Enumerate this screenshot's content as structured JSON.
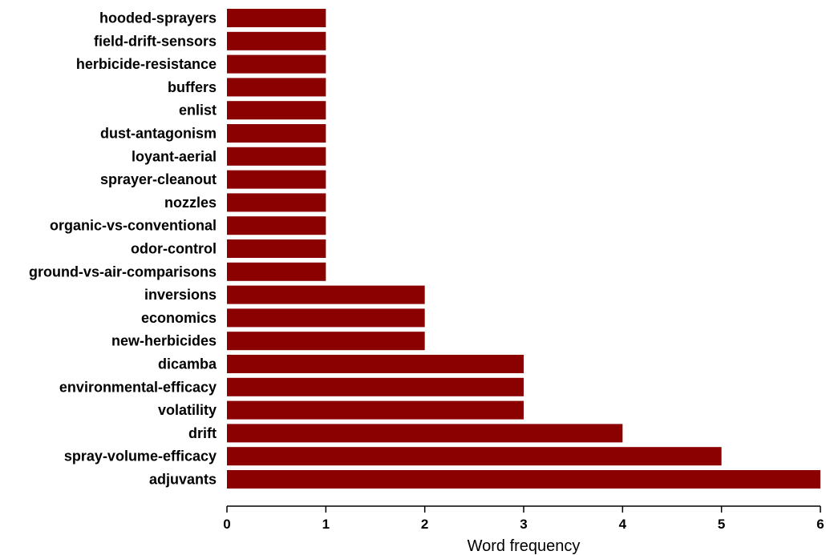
{
  "chart_data": {
    "type": "bar",
    "orientation": "horizontal",
    "categories": [
      "hooded-sprayers",
      "field-drift-sensors",
      "herbicide-resistance",
      "buffers",
      "enlist",
      "dust-antagonism",
      "loyant-aerial",
      "sprayer-cleanout",
      "nozzles",
      "organic-vs-conventional",
      "odor-control",
      "ground-vs-air-comparisons",
      "inversions",
      "economics",
      "new-herbicides",
      "dicamba",
      "environmental-efficacy",
      "volatility",
      "drift",
      "spray-volume-efficacy",
      "adjuvants"
    ],
    "values": [
      1,
      1,
      1,
      1,
      1,
      1,
      1,
      1,
      1,
      1,
      1,
      1,
      2,
      2,
      2,
      3,
      3,
      3,
      4,
      5,
      6
    ],
    "xlabel": "Word frequency",
    "ylabel": "",
    "title": "",
    "xlim": [
      0,
      6
    ],
    "xticks": [
      "0",
      "1",
      "2",
      "3",
      "4",
      "5",
      "6"
    ],
    "grid": false,
    "legend": "none",
    "bar_color": "#8b0000"
  }
}
